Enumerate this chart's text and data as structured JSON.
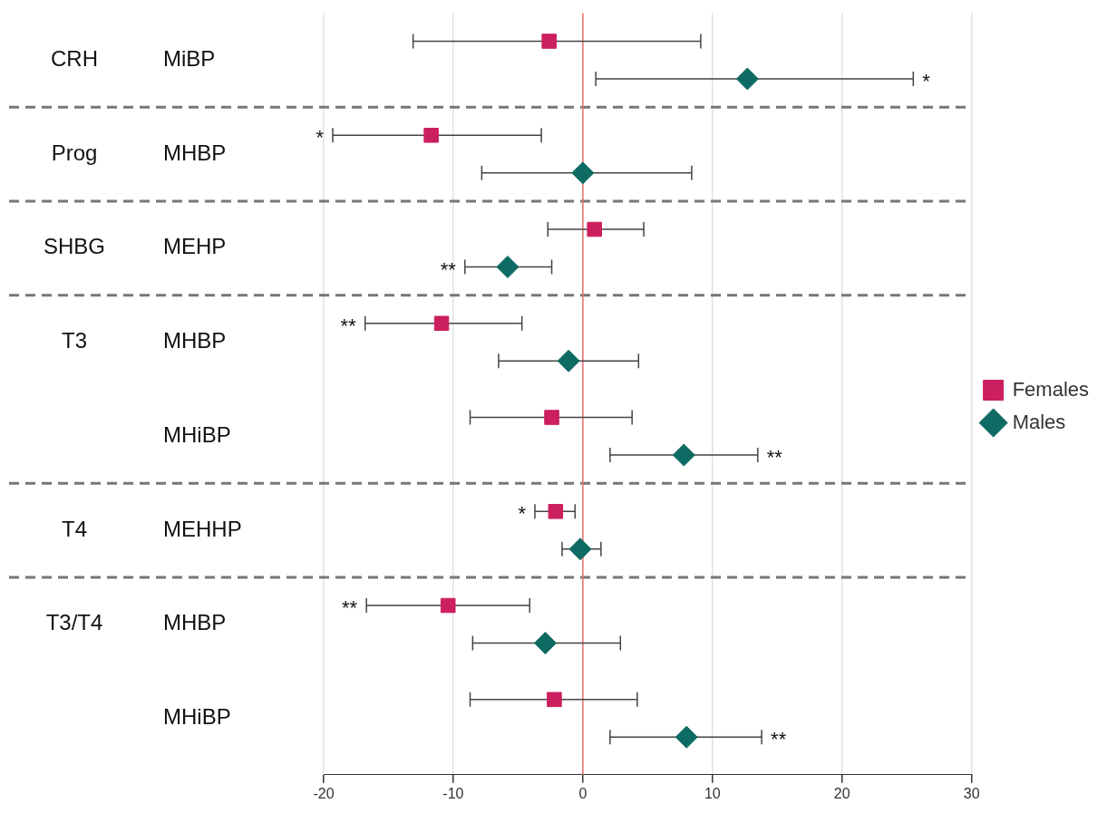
{
  "chart_data": {
    "type": "scatter",
    "orientation": "horizontal",
    "categories": [
      "MiBP",
      "MHBP",
      "MEHP",
      "MHBP",
      "MHiBP",
      "MEHHP",
      "MHBP",
      "MHiBP"
    ],
    "series": [
      {
        "name": "Females",
        "color": "#cc1f5f",
        "marker": "square",
        "values": [
          -2.6,
          -11.7,
          0.9,
          -10.9,
          -2.4,
          -2.1,
          -10.4,
          -2.2
        ],
        "errors": [
          [
            -13.1,
            9.1
          ],
          [
            -19.3,
            -3.2
          ],
          [
            -2.7,
            4.7
          ],
          [
            -16.8,
            -4.7
          ],
          [
            -8.7,
            3.8
          ],
          [
            -3.7,
            -0.6
          ],
          [
            -16.7,
            -4.1
          ],
          [
            -8.7,
            4.2
          ]
        ]
      },
      {
        "name": "Males",
        "color": "#0e6b63",
        "marker": "diamond",
        "values": [
          12.7,
          0,
          -5.8,
          -1.1,
          7.8,
          -0.2,
          -2.9,
          8.0
        ],
        "errors": [
          [
            1.0,
            25.5
          ],
          [
            -7.8,
            8.4
          ],
          [
            -9.1,
            -2.4
          ],
          [
            -6.5,
            4.3
          ],
          [
            2.1,
            13.5
          ],
          [
            -1.6,
            1.4
          ],
          [
            -8.5,
            2.9
          ],
          [
            2.1,
            13.8
          ]
        ]
      }
    ],
    "xlim": [
      -20,
      30
    ],
    "xticks": [
      -20,
      -10,
      0,
      10,
      20,
      30
    ],
    "grid": "x",
    "legend": "right",
    "ref_lines": [
      {
        "axis": "x",
        "value": 0,
        "color": "#f07070"
      }
    ],
    "annotations": [
      "CRH",
      "*",
      "Prog",
      "*",
      "SHBG",
      "**",
      "T3",
      "**",
      "**",
      "T4",
      "*",
      "T3/T4",
      "**",
      "**"
    ]
  }
}
